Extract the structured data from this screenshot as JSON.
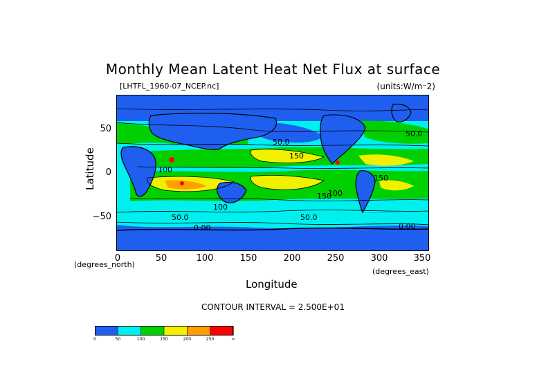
{
  "title": "Monthly Mean Latent Heat Net Flux at surface",
  "file_label": "[LHTFL_1960-07_NCEP.nc]",
  "units_label": "(units:W/m⁻2)",
  "y_axis": {
    "label": "Latitude",
    "unit": "(degrees_north)",
    "ticks": [
      "50",
      "0",
      "−50"
    ]
  },
  "x_axis": {
    "label": "Longitude",
    "unit": "(degrees_east)",
    "ticks": [
      "0",
      "50",
      "100",
      "150",
      "200",
      "250",
      "300",
      "350"
    ]
  },
  "contour_interval": "CONTOUR INTERVAL = 2.500E+01",
  "contour_labels": [
    "50.0",
    "50.0",
    "100",
    "50.0",
    "150",
    "150",
    "50.0",
    "0.00",
    "0.00",
    "100",
    "150",
    "100"
  ],
  "colorbar": {
    "colors": [
      "#1f5ff0",
      "#00f0f0",
      "#00d000",
      "#f0f000",
      "#ffa000",
      "#ff0000"
    ],
    "tick_labels": [
      "0",
      "50",
      "100",
      "150",
      "200",
      "250",
      "∞"
    ]
  },
  "chart_data": {
    "type": "heatmap",
    "variable": "Latent Heat Net Flux at surface",
    "title": "Monthly Mean Latent Heat Net Flux at surface",
    "units": "W/m⁻2",
    "xlabel": "Longitude",
    "ylabel": "Latitude",
    "xlim": [
      0,
      357.5
    ],
    "ylim": [
      -88.5,
      88.5
    ],
    "contour_interval": 25,
    "levels": [
      0,
      50,
      100,
      150,
      200,
      250
    ],
    "colors": [
      "#1f5ff0",
      "#00f0f0",
      "#00d000",
      "#f0f000",
      "#ffa000",
      "#ff0000"
    ]
  }
}
